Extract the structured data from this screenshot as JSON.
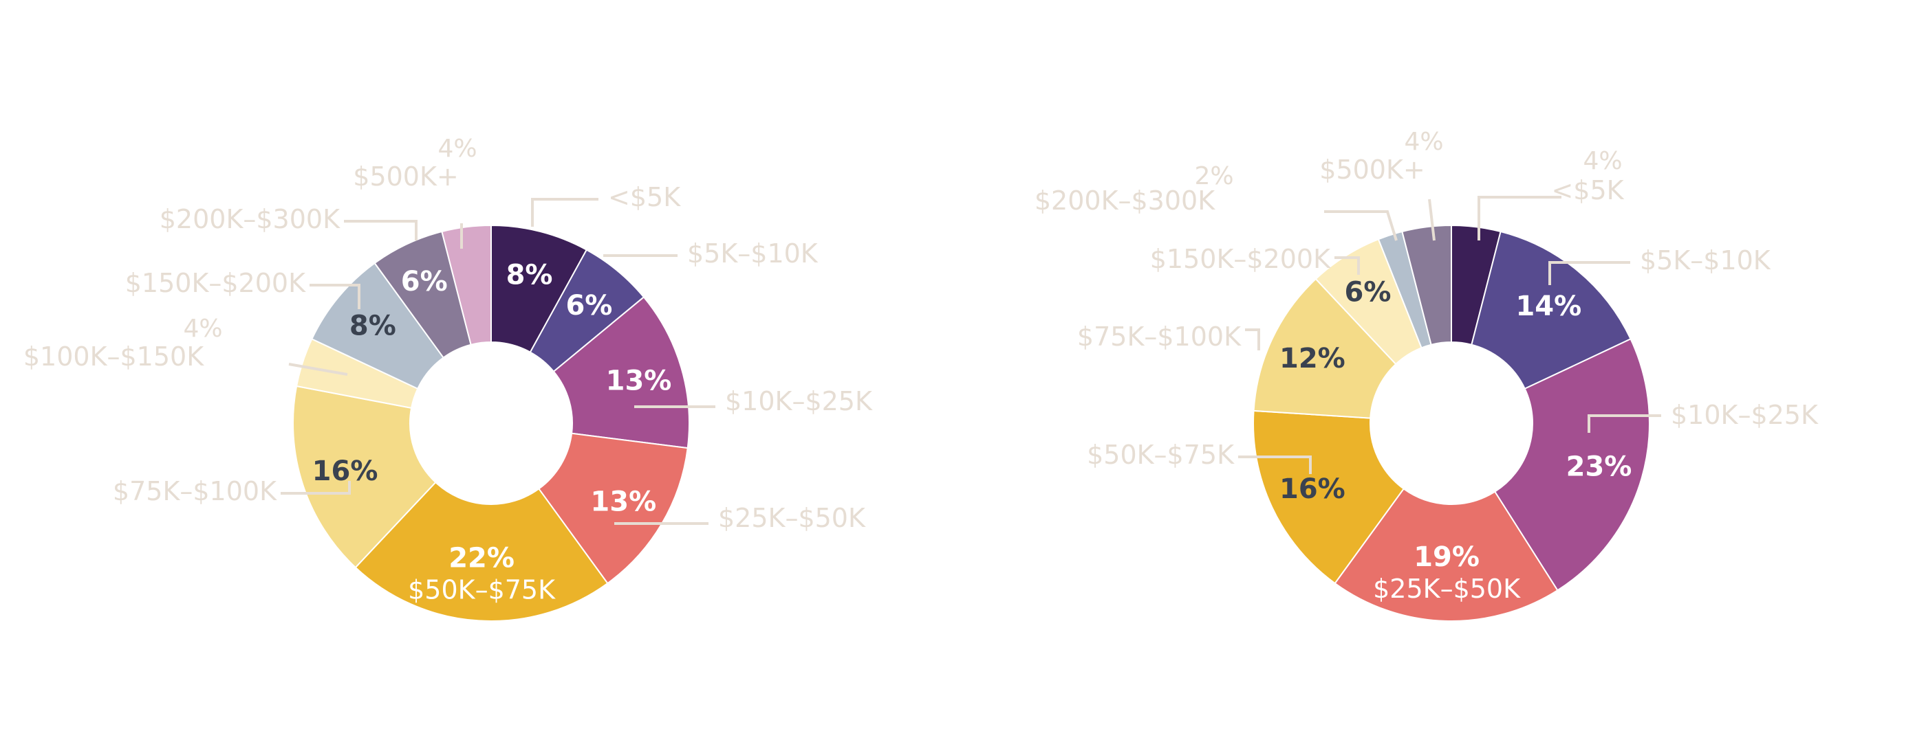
{
  "chart_data": [
    {
      "type": "pie",
      "donut": true,
      "title": "",
      "categories": [
        "<$5K",
        "$5K–$10K",
        "$10K–$25K",
        "$25K–$50K",
        "$50K–$75K",
        "$75K–$100K",
        "$100K–$150K",
        "$150K–$200K",
        "$200K–$300K",
        "$500K+"
      ],
      "value_labels": [
        "8%",
        "6%",
        "13%",
        "13%",
        "22%",
        "16%",
        "4%",
        "8%",
        "6%",
        "4%"
      ],
      "values": [
        8,
        6,
        13,
        13,
        22,
        16,
        4,
        8,
        6,
        4
      ],
      "colors": [
        "#3b1f57",
        "#574b8f",
        "#a34f90",
        "#e8716a",
        "#ebb32a",
        "#f4db88",
        "#fbecbb",
        "#b3bfcc",
        "#887a97",
        "#d7a8c8"
      ],
      "label_colors": {
        "light_bg": "#ffffff",
        "dark_bg": "#3a4250",
        "outside": "#e6ddd3"
      }
    },
    {
      "type": "pie",
      "donut": true,
      "title": "",
      "categories": [
        "<$5K",
        "$5K–$10K",
        "$10K–$25K",
        "$25K–$50K",
        "$50K–$75K",
        "$75K–$100K",
        "$150K–$200K",
        "$200K–$300K",
        "$500K+"
      ],
      "value_labels": [
        "4%",
        "14%",
        "23%",
        "19%",
        "16%",
        "12%",
        "6%",
        "2%",
        "4%"
      ],
      "values": [
        4,
        14,
        23,
        19,
        16,
        12,
        6,
        2,
        4
      ],
      "colors": [
        "#3b1f57",
        "#574b8f",
        "#a34f90",
        "#e8716a",
        "#ebb32a",
        "#f4db88",
        "#fbecbb",
        "#b3bfcc",
        "#887a97"
      ],
      "label_colors": {
        "light_bg": "#ffffff",
        "dark_bg": "#3a4250",
        "outside": "#e6ddd3"
      }
    }
  ]
}
